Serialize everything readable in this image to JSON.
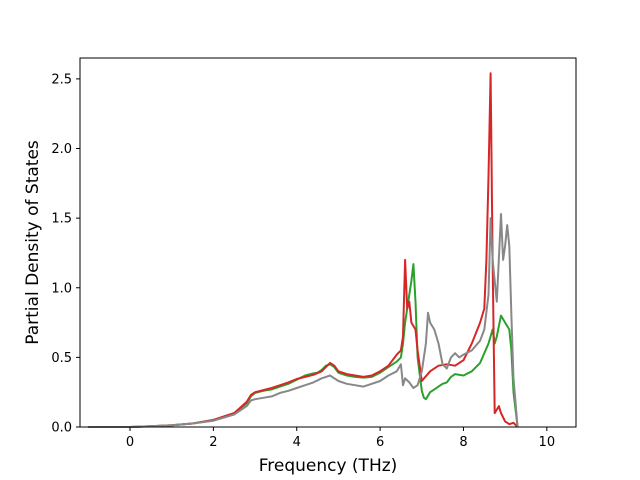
{
  "chart_data": {
    "type": "line",
    "title": "",
    "xlabel": "Frequency (THz)",
    "ylabel": "Partial Density of States",
    "xlim": [
      -1.2,
      10.7
    ],
    "ylim": [
      0.0,
      2.65
    ],
    "xticks": [
      0,
      2,
      4,
      6,
      8,
      10
    ],
    "xtick_labels": [
      "0",
      "2",
      "4",
      "6",
      "8",
      "10"
    ],
    "yticks": [
      0.0,
      0.5,
      1.0,
      1.5,
      2.0,
      2.5
    ],
    "ytick_labels": [
      "0.0",
      "0.5",
      "1.0",
      "1.5",
      "2.0",
      "2.5"
    ],
    "grid": false,
    "legend": "none",
    "series": [
      {
        "color": "#2ca02c",
        "points": [
          [
            -1.0,
            0
          ],
          [
            0.0,
            0
          ],
          [
            0.5,
            0.005
          ],
          [
            1.0,
            0.012
          ],
          [
            1.5,
            0.025
          ],
          [
            2.0,
            0.05
          ],
          [
            2.5,
            0.1
          ],
          [
            2.8,
            0.17
          ],
          [
            2.9,
            0.22
          ],
          [
            3.0,
            0.245
          ],
          [
            3.2,
            0.26
          ],
          [
            3.4,
            0.27
          ],
          [
            3.6,
            0.29
          ],
          [
            3.8,
            0.31
          ],
          [
            4.0,
            0.34
          ],
          [
            4.2,
            0.37
          ],
          [
            4.4,
            0.385
          ],
          [
            4.5,
            0.39
          ],
          [
            4.6,
            0.41
          ],
          [
            4.7,
            0.44
          ],
          [
            4.8,
            0.45
          ],
          [
            4.9,
            0.43
          ],
          [
            5.0,
            0.39
          ],
          [
            5.2,
            0.37
          ],
          [
            5.4,
            0.36
          ],
          [
            5.6,
            0.355
          ],
          [
            5.8,
            0.36
          ],
          [
            6.0,
            0.39
          ],
          [
            6.2,
            0.43
          ],
          [
            6.4,
            0.47
          ],
          [
            6.5,
            0.5
          ],
          [
            6.55,
            0.6
          ],
          [
            6.6,
            0.75
          ],
          [
            6.7,
            0.95
          ],
          [
            6.75,
            1.05
          ],
          [
            6.8,
            1.17
          ],
          [
            6.85,
            0.9
          ],
          [
            6.9,
            0.5
          ],
          [
            7.0,
            0.26
          ],
          [
            7.05,
            0.21
          ],
          [
            7.1,
            0.2
          ],
          [
            7.2,
            0.25
          ],
          [
            7.3,
            0.27
          ],
          [
            7.4,
            0.29
          ],
          [
            7.5,
            0.31
          ],
          [
            7.6,
            0.32
          ],
          [
            7.7,
            0.36
          ],
          [
            7.8,
            0.38
          ],
          [
            8.0,
            0.37
          ],
          [
            8.2,
            0.4
          ],
          [
            8.3,
            0.43
          ],
          [
            8.4,
            0.46
          ],
          [
            8.5,
            0.53
          ],
          [
            8.6,
            0.6
          ],
          [
            8.7,
            0.7
          ],
          [
            8.75,
            0.6
          ],
          [
            8.8,
            0.65
          ],
          [
            8.9,
            0.8
          ],
          [
            9.0,
            0.75
          ],
          [
            9.1,
            0.7
          ],
          [
            9.15,
            0.55
          ],
          [
            9.2,
            0.25
          ],
          [
            9.3,
            0
          ]
        ]
      },
      {
        "color": "#d62728",
        "points": [
          [
            -1.0,
            0
          ],
          [
            0.0,
            0
          ],
          [
            0.5,
            0.005
          ],
          [
            1.0,
            0.012
          ],
          [
            1.5,
            0.025
          ],
          [
            2.0,
            0.05
          ],
          [
            2.5,
            0.1
          ],
          [
            2.8,
            0.18
          ],
          [
            2.9,
            0.23
          ],
          [
            3.0,
            0.25
          ],
          [
            3.2,
            0.265
          ],
          [
            3.4,
            0.28
          ],
          [
            3.6,
            0.3
          ],
          [
            3.8,
            0.32
          ],
          [
            4.0,
            0.345
          ],
          [
            4.2,
            0.36
          ],
          [
            4.4,
            0.375
          ],
          [
            4.6,
            0.4
          ],
          [
            4.7,
            0.43
          ],
          [
            4.8,
            0.46
          ],
          [
            4.9,
            0.44
          ],
          [
            5.0,
            0.4
          ],
          [
            5.2,
            0.38
          ],
          [
            5.4,
            0.37
          ],
          [
            5.6,
            0.36
          ],
          [
            5.8,
            0.37
          ],
          [
            6.0,
            0.4
          ],
          [
            6.2,
            0.44
          ],
          [
            6.4,
            0.52
          ],
          [
            6.5,
            0.55
          ],
          [
            6.55,
            0.65
          ],
          [
            6.6,
            1.2
          ],
          [
            6.65,
            0.85
          ],
          [
            6.7,
            0.9
          ],
          [
            6.75,
            0.75
          ],
          [
            6.85,
            0.7
          ],
          [
            6.9,
            0.55
          ],
          [
            7.0,
            0.33
          ],
          [
            7.2,
            0.4
          ],
          [
            7.4,
            0.44
          ],
          [
            7.6,
            0.45
          ],
          [
            7.8,
            0.44
          ],
          [
            8.0,
            0.48
          ],
          [
            8.2,
            0.6
          ],
          [
            8.4,
            0.75
          ],
          [
            8.5,
            0.85
          ],
          [
            8.55,
            1.2
          ],
          [
            8.6,
            1.8
          ],
          [
            8.65,
            2.54
          ],
          [
            8.7,
            1.2
          ],
          [
            8.75,
            0.1
          ],
          [
            8.85,
            0.15
          ],
          [
            8.9,
            0.1
          ],
          [
            9.0,
            0.04
          ],
          [
            9.1,
            0.02
          ],
          [
            9.2,
            0.03
          ],
          [
            9.3,
            0
          ]
        ]
      },
      {
        "color": "#888888",
        "points": [
          [
            -1.0,
            0
          ],
          [
            0.0,
            0
          ],
          [
            0.5,
            0.005
          ],
          [
            1.0,
            0.012
          ],
          [
            1.5,
            0.025
          ],
          [
            2.0,
            0.045
          ],
          [
            2.5,
            0.09
          ],
          [
            2.8,
            0.15
          ],
          [
            2.9,
            0.19
          ],
          [
            3.0,
            0.2
          ],
          [
            3.2,
            0.21
          ],
          [
            3.4,
            0.22
          ],
          [
            3.6,
            0.245
          ],
          [
            3.8,
            0.26
          ],
          [
            4.0,
            0.28
          ],
          [
            4.2,
            0.3
          ],
          [
            4.4,
            0.32
          ],
          [
            4.6,
            0.35
          ],
          [
            4.7,
            0.36
          ],
          [
            4.8,
            0.37
          ],
          [
            4.9,
            0.35
          ],
          [
            5.0,
            0.33
          ],
          [
            5.2,
            0.31
          ],
          [
            5.4,
            0.3
          ],
          [
            5.6,
            0.29
          ],
          [
            5.8,
            0.31
          ],
          [
            6.0,
            0.33
          ],
          [
            6.2,
            0.37
          ],
          [
            6.4,
            0.4
          ],
          [
            6.5,
            0.45
          ],
          [
            6.55,
            0.3
          ],
          [
            6.6,
            0.35
          ],
          [
            6.7,
            0.32
          ],
          [
            6.8,
            0.28
          ],
          [
            6.9,
            0.3
          ],
          [
            7.0,
            0.4
          ],
          [
            7.1,
            0.6
          ],
          [
            7.15,
            0.82
          ],
          [
            7.2,
            0.75
          ],
          [
            7.3,
            0.7
          ],
          [
            7.4,
            0.6
          ],
          [
            7.5,
            0.45
          ],
          [
            7.6,
            0.42
          ],
          [
            7.7,
            0.5
          ],
          [
            7.8,
            0.53
          ],
          [
            7.9,
            0.5
          ],
          [
            8.0,
            0.52
          ],
          [
            8.2,
            0.55
          ],
          [
            8.4,
            0.62
          ],
          [
            8.5,
            0.7
          ],
          [
            8.6,
            0.95
          ],
          [
            8.65,
            1.5
          ],
          [
            8.7,
            1.2
          ],
          [
            8.8,
            0.9
          ],
          [
            8.9,
            1.53
          ],
          [
            8.95,
            1.2
          ],
          [
            9.0,
            1.3
          ],
          [
            9.05,
            1.45
          ],
          [
            9.1,
            1.3
          ],
          [
            9.15,
            0.8
          ],
          [
            9.2,
            0.35
          ],
          [
            9.3,
            0
          ]
        ]
      }
    ]
  }
}
